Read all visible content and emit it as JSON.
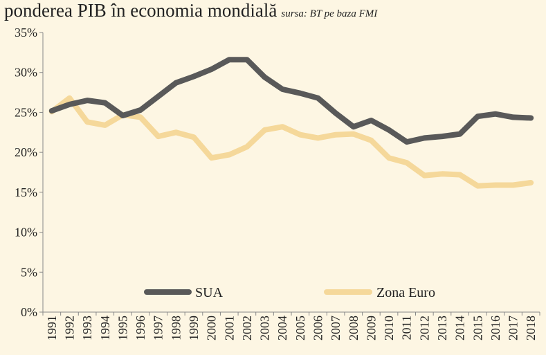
{
  "header": {
    "title": "ponderea PIB în economia mondială",
    "source": "sursa: BT pe baza FMI"
  },
  "colors": {
    "background": "#fdf6e3",
    "SUA": "#595959",
    "Zona Euro": "#f5d89a"
  },
  "chart_data": {
    "type": "line",
    "title": "ponderea PIB în economia mondială",
    "xlabel": "",
    "ylabel": "",
    "ylim": [
      0,
      35
    ],
    "ytick_labels": [
      "0%",
      "5%",
      "10%",
      "15%",
      "20%",
      "25%",
      "30%",
      "35%"
    ],
    "categories": [
      "1991",
      "1992",
      "1993",
      "1994",
      "1995",
      "1996",
      "1997",
      "1998",
      "1999",
      "2000",
      "2001",
      "2002",
      "2003",
      "2004",
      "2005",
      "2006",
      "2007",
      "2008",
      "2009",
      "2010",
      "2011",
      "2012",
      "2013",
      "2014",
      "2015",
      "2016",
      "2017",
      "2018"
    ],
    "series": [
      {
        "name": "SUA",
        "values": [
          25.2,
          26.0,
          26.5,
          26.2,
          24.6,
          25.3,
          27.0,
          28.7,
          29.5,
          30.4,
          31.6,
          31.6,
          29.4,
          27.9,
          27.4,
          26.8,
          24.9,
          23.2,
          24.0,
          22.8,
          21.3,
          21.8,
          22.0,
          22.3,
          24.5,
          24.8,
          24.4,
          24.3
        ]
      },
      {
        "name": "Zona Euro",
        "values": [
          25.1,
          26.8,
          23.8,
          23.4,
          24.7,
          24.4,
          22.0,
          22.5,
          21.9,
          19.3,
          19.7,
          20.7,
          22.8,
          23.2,
          22.2,
          21.8,
          22.2,
          22.3,
          21.5,
          19.3,
          18.7,
          17.1,
          17.3,
          17.2,
          15.8,
          15.9,
          15.9,
          16.2
        ]
      }
    ],
    "legend": "bottom, inside plot",
    "grid": false
  }
}
